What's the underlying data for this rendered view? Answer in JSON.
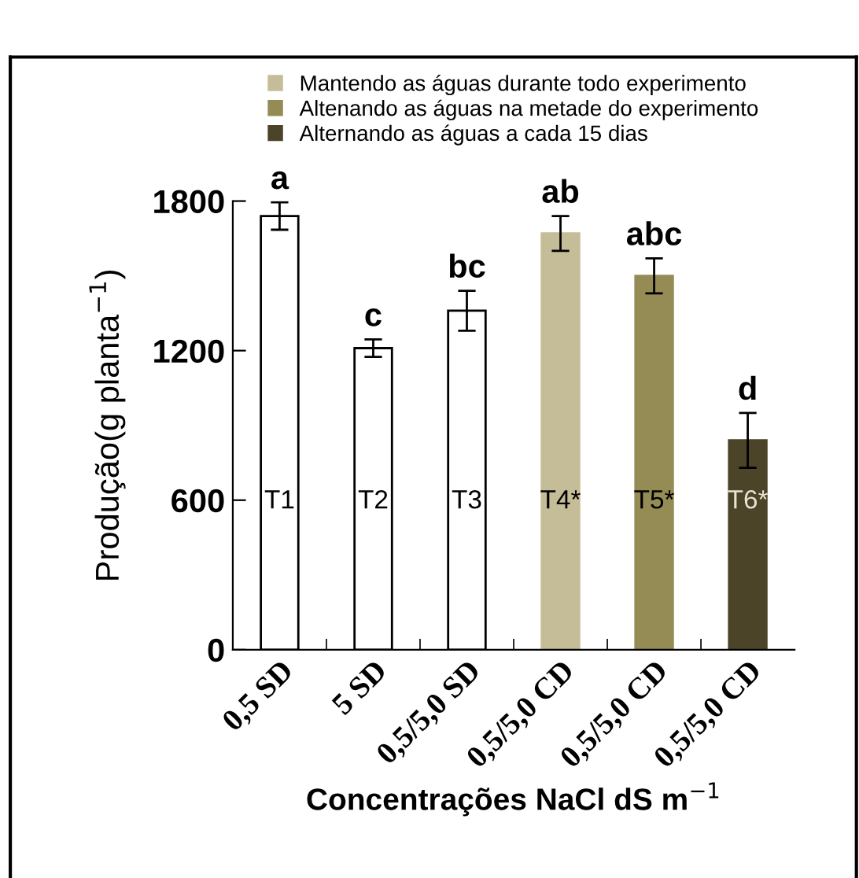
{
  "chart_data": {
    "type": "bar",
    "xlabel": "Concentrações NaCl dS m$^{−1}$",
    "ylabel": "Produção(g planta$^{−1}$)",
    "categories": [
      "0,5 SD",
      "5 SD",
      "0,5/5,0 SD",
      "0,5/5,0 CD",
      "0,5/5,0 CD",
      "0,5/5,0 CD"
    ],
    "series": [
      {
        "color": "#ffffff",
        "values": [
          1740,
          1210,
          1360,
          null,
          null,
          null
        ],
        "errors": [
          55,
          35,
          80,
          null,
          null,
          null
        ],
        "value_labels": [
          "a",
          "c",
          "bc",
          null,
          null,
          null
        ]
      },
      {
        "name": "Mantendo as águas durante todo experimento",
        "color": "#c5bd98",
        "values": [
          null,
          null,
          null,
          1670,
          null,
          null
        ],
        "errors": [
          null,
          null,
          null,
          70,
          null,
          null
        ],
        "value_labels": [
          null,
          null,
          null,
          "ab",
          null,
          null
        ]
      },
      {
        "name": "Altenando as águas na metade do experimento",
        "color": "#958b55",
        "values": [
          null,
          null,
          null,
          null,
          1500,
          null
        ],
        "errors": [
          null,
          null,
          null,
          null,
          70,
          null
        ],
        "value_labels": [
          null,
          null,
          null,
          null,
          "abc",
          null
        ]
      },
      {
        "name": "Alternando as águas a cada 15 dias",
        "color": "#4b4429",
        "values": [
          null,
          null,
          null,
          null,
          null,
          840
        ],
        "errors": [
          null,
          null,
          null,
          null,
          null,
          110
        ],
        "value_labels": [
          null,
          null,
          null,
          null,
          null,
          "d"
        ]
      }
    ],
    "annotations": [
      "T1",
      "T2",
      "T3",
      "T4*",
      "T5*",
      "T6*"
    ],
    "ylim": [
      0,
      1800
    ],
    "yticks": [
      0,
      600,
      1200,
      1800
    ],
    "grid": false,
    "legend": "top"
  }
}
